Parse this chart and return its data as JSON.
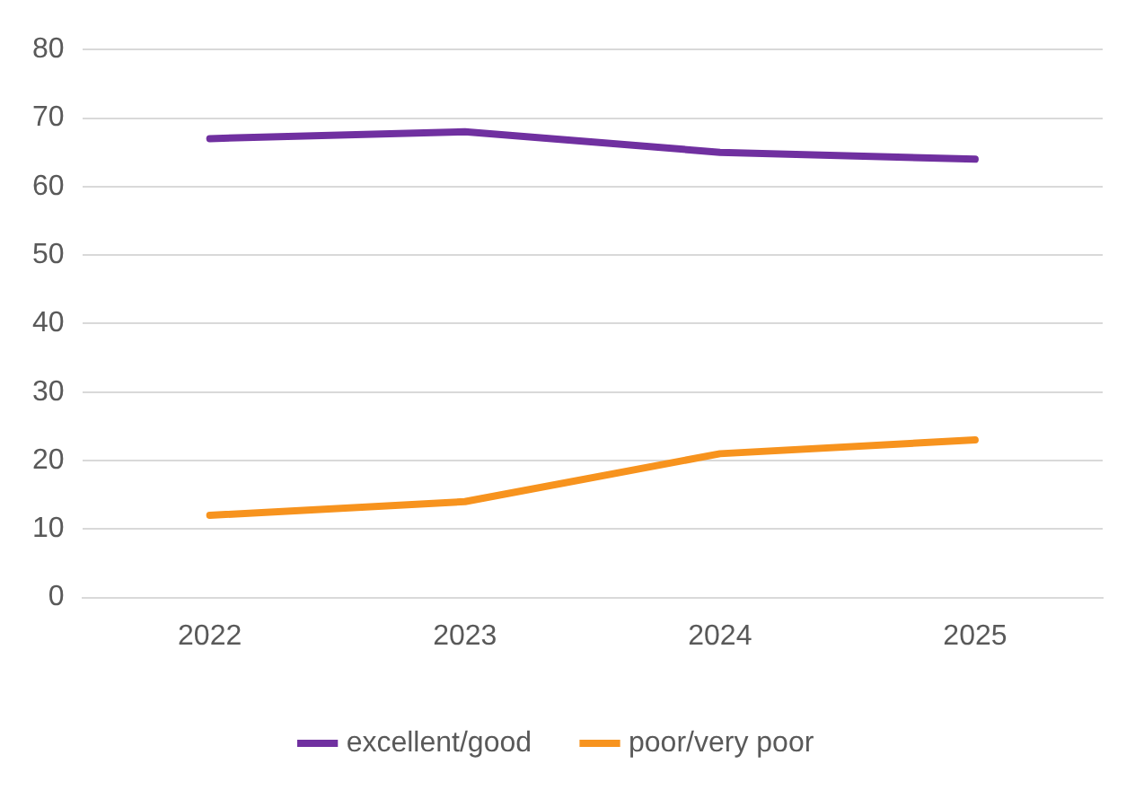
{
  "chart_data": {
    "type": "line",
    "categories": [
      "2022",
      "2023",
      "2024",
      "2025"
    ],
    "series": [
      {
        "name": "excellent/good",
        "color": "#7030a0",
        "values": [
          67,
          68,
          65,
          64
        ]
      },
      {
        "name": "poor/very poor",
        "color": "#f7931e",
        "values": [
          12,
          14,
          21,
          23
        ]
      }
    ],
    "ylim": [
      0,
      80
    ],
    "yticks": [
      0,
      10,
      20,
      30,
      40,
      50,
      60,
      70,
      80
    ],
    "grid": "y",
    "legend": "bottom",
    "marker": "none",
    "line_style": "solid"
  }
}
